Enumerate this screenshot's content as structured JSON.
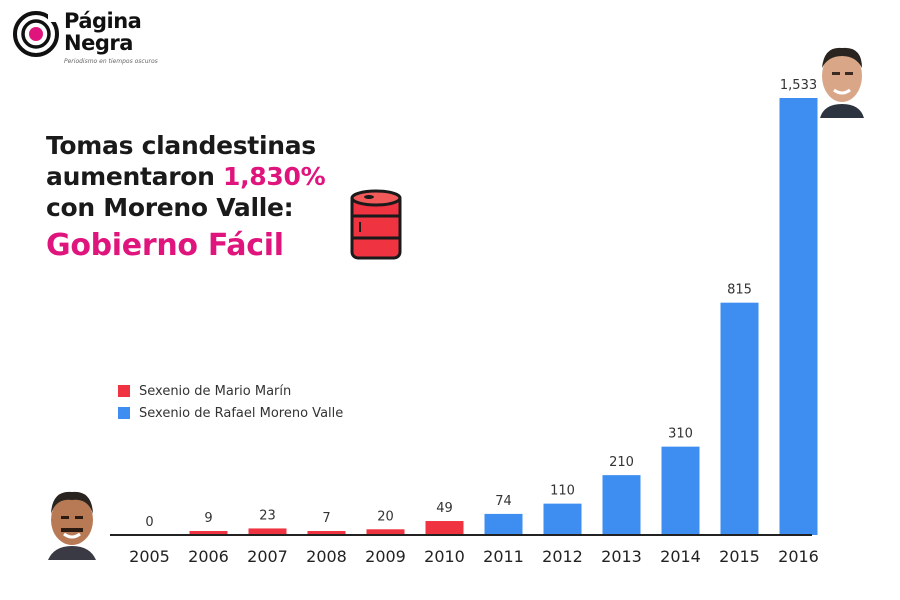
{
  "brand": {
    "name_line1": "Página",
    "name_line2": "Negra",
    "tagline": "Periodismo en tiempos oscuros"
  },
  "headline": {
    "line1": "Tomas clandestinas",
    "line2_pre": "aumentaron ",
    "line2_accent": "1,830%",
    "line3": "con Moreno Valle:",
    "line4": "Gobierno Fácil"
  },
  "colors": {
    "accent": "#e0147d",
    "marin": "#ef3340",
    "moreno_valle": "#3d8ef0",
    "axis": "#222222"
  },
  "icons": {
    "barrel": "oil-barrel-icon",
    "portrait_top": "politician-portrait-icon",
    "portrait_bottom": "politician-portrait-icon"
  },
  "legend": [
    {
      "label": "Sexenio de Mario Marín",
      "color": "#ef3340"
    },
    {
      "label": "Sexenio de Rafael Moreno Valle",
      "color": "#3d8ef0"
    }
  ],
  "chart_data": {
    "type": "bar",
    "categories": [
      "2005",
      "2006",
      "2007",
      "2008",
      "2009",
      "2010",
      "2011",
      "2012",
      "2013",
      "2014",
      "2015",
      "2016"
    ],
    "values": [
      0,
      9,
      23,
      7,
      20,
      49,
      74,
      110,
      210,
      310,
      815,
      1533
    ],
    "value_labels": [
      "0",
      "9",
      "23",
      "7",
      "20",
      "49",
      "74",
      "110",
      "210",
      "310",
      "815",
      "1,533"
    ],
    "series_assignment": [
      "Sexenio de Mario Marín",
      "Sexenio de Mario Marín",
      "Sexenio de Mario Marín",
      "Sexenio de Mario Marín",
      "Sexenio de Mario Marín",
      "Sexenio de Mario Marín",
      "Sexenio de Rafael Moreno Valle",
      "Sexenio de Rafael Moreno Valle",
      "Sexenio de Rafael Moreno Valle",
      "Sexenio de Rafael Moreno Valle",
      "Sexenio de Rafael Moreno Valle",
      "Sexenio de Rafael Moreno Valle"
    ],
    "title": "Tomas clandestinas aumentaron 1,830% con Moreno Valle: Gobierno Fácil",
    "xlabel": "",
    "ylabel": "",
    "ylim": [
      0,
      1533
    ],
    "grid": false,
    "legend_position": "left"
  }
}
